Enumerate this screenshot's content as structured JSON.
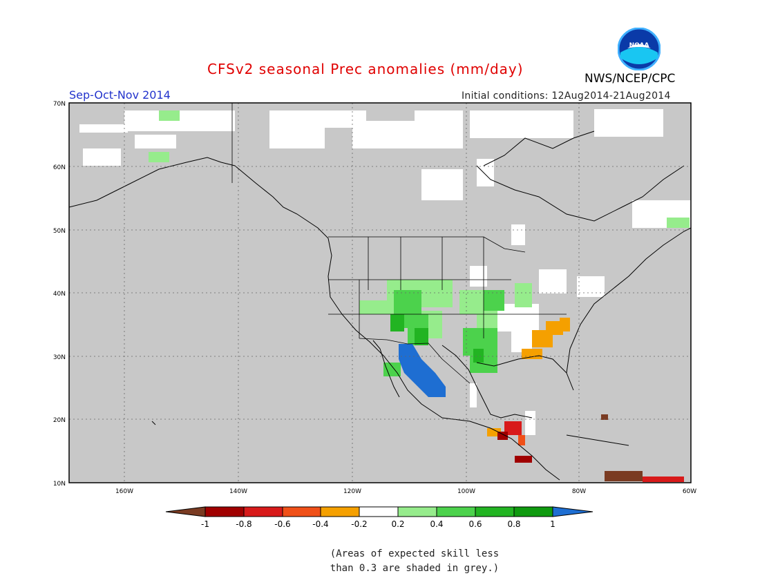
{
  "header": {
    "title": "CFSv2 seasonal Prec anomalies (mm/day)",
    "season": "Sep-Oct-Nov 2014",
    "initial_conditions": "Initial conditions: 12Aug2014-21Aug2014",
    "agency": "NWS/NCEP/CPC",
    "logo_text": "NOAA"
  },
  "map": {
    "projection": "lat-lon",
    "lon_range": [
      -172,
      -60
    ],
    "lat_range": [
      10,
      70
    ],
    "lat_ticks": [
      "70N",
      "60N",
      "50N",
      "40N",
      "30N",
      "20N",
      "10N"
    ],
    "lon_ticks": [
      "160W",
      "140W",
      "120W",
      "100W",
      "80W",
      "60W"
    ],
    "grid": "dotted",
    "background_color": "#c8c8c8"
  },
  "colorbar": {
    "labels": [
      "-1",
      "-0.8",
      "-0.6",
      "-0.4",
      "-0.2",
      "0.2",
      "0.4",
      "0.6",
      "0.8",
      "1"
    ],
    "colors": [
      "#7a3b22",
      "#a00000",
      "#d81a1a",
      "#f05018",
      "#f5a000",
      "#ffffff",
      "#96ec8c",
      "#4cd24c",
      "#22b422",
      "#0f9a0f",
      "#1e6ed2"
    ]
  },
  "footnote": {
    "line1": "(Areas of expected skill less",
    "line2": "than 0.3 are shaded in grey.)"
  }
}
